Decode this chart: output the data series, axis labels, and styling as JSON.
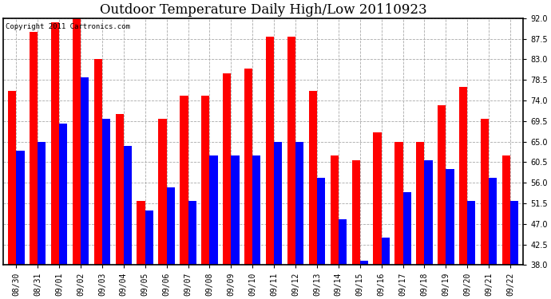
{
  "title": "Outdoor Temperature Daily High/Low 20110923",
  "copyright": "Copyright 2011 Cartronics.com",
  "dates": [
    "08/30",
    "08/31",
    "09/01",
    "09/02",
    "09/03",
    "09/04",
    "09/05",
    "09/06",
    "09/07",
    "09/08",
    "09/09",
    "09/10",
    "09/11",
    "09/12",
    "09/13",
    "09/14",
    "09/15",
    "09/16",
    "09/17",
    "09/18",
    "09/19",
    "09/20",
    "09/21",
    "09/22"
  ],
  "highs": [
    76,
    89,
    91,
    93,
    83,
    71,
    52,
    70,
    75,
    75,
    80,
    81,
    88,
    88,
    76,
    62,
    61,
    67,
    65,
    65,
    73,
    77,
    70,
    62
  ],
  "lows": [
    63,
    65,
    69,
    79,
    70,
    64,
    50,
    55,
    52,
    62,
    62,
    62,
    65,
    65,
    57,
    48,
    39,
    44,
    54,
    61,
    59,
    52,
    57,
    52
  ],
  "high_color": "#ff0000",
  "low_color": "#0000ff",
  "bg_color": "#ffffff",
  "plot_bg_color": "#ffffff",
  "grid_color": "#aaaaaa",
  "bar_bottom": 38.0,
  "ylim": [
    38.0,
    92.0
  ],
  "yticks": [
    38.0,
    42.5,
    47.0,
    51.5,
    56.0,
    60.5,
    65.0,
    69.5,
    74.0,
    78.5,
    83.0,
    87.5,
    92.0
  ],
  "bar_width": 0.38,
  "title_fontsize": 12,
  "tick_fontsize": 7,
  "copyright_fontsize": 6.5
}
